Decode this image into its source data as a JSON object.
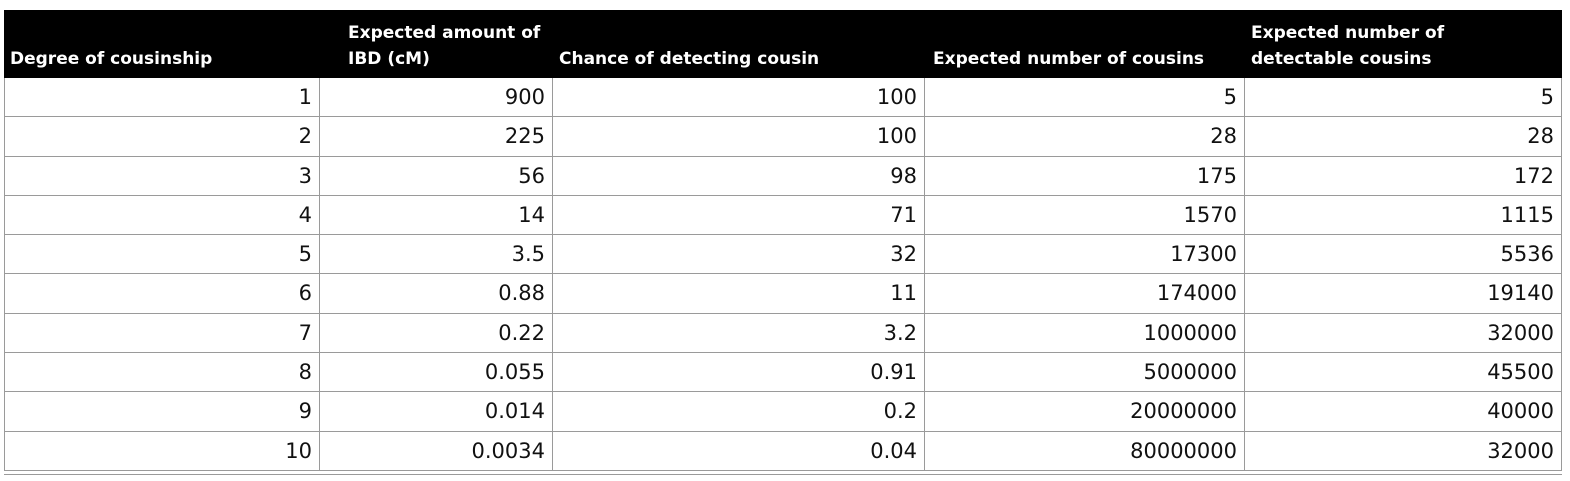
{
  "table": {
    "header": [
      [
        "Degree of cousinship"
      ],
      [
        "Expected amount of",
        "IBD (cM)"
      ],
      [
        "Chance of detecting cousin"
      ],
      [
        "Expected number of cousins"
      ],
      [
        "Expected number of",
        "detectable cousins"
      ]
    ],
    "rows": [
      [
        1,
        900,
        100,
        5,
        5
      ],
      [
        2,
        225,
        100,
        28,
        28
      ],
      [
        3,
        56,
        98,
        175,
        172
      ],
      [
        4,
        14,
        71,
        1570,
        1115
      ],
      [
        5,
        3.5,
        32,
        17300,
        5536
      ],
      [
        6,
        0.88,
        11,
        174000,
        19140
      ],
      [
        7,
        0.22,
        3.2,
        1000000,
        32000
      ],
      [
        8,
        0.055,
        0.91,
        5000000,
        45500
      ],
      [
        9,
        0.014,
        0.2,
        20000000,
        40000
      ],
      [
        10,
        0.0034,
        0.04,
        80000000,
        32000
      ]
    ]
  }
}
